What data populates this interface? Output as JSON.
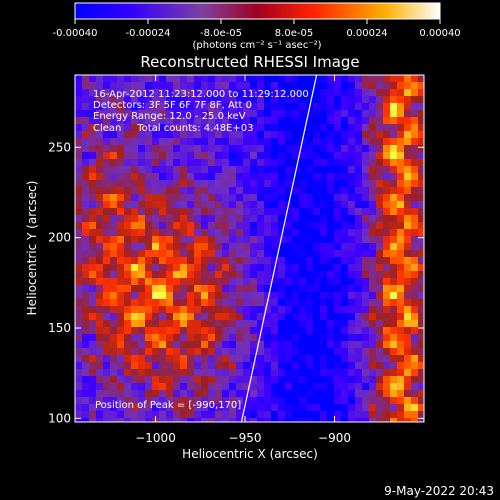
{
  "colorbar": {
    "ticks": [
      {
        "value": -0.0004,
        "label": "-0.00040"
      },
      {
        "value": -0.00024,
        "label": "-0.00024"
      },
      {
        "value": -8e-05,
        "label": "-8.0e-05"
      },
      {
        "value": 8e-05,
        "label": "8.0e-05"
      },
      {
        "value": 0.00024,
        "label": "0.00024"
      },
      {
        "value": 0.0004,
        "label": "0.00040"
      }
    ],
    "range": [
      -0.0004,
      0.0004
    ],
    "unit_label": "(photons cm⁻² s⁻¹ asec⁻²)"
  },
  "chart_data": {
    "type": "heatmap",
    "title": "Reconstructed RHESSI Image",
    "xlabel": "Heliocentric X (arcsec)",
    "ylabel": "Heliocentric Y (arcsec)",
    "xlim": [
      -1045,
      -850
    ],
    "ylim": [
      98,
      290
    ],
    "xticks": [
      {
        "value": -1000,
        "label": "−1000"
      },
      {
        "value": -950,
        "label": "−950"
      },
      {
        "value": -900,
        "label": "−900"
      }
    ],
    "yticks": [
      {
        "value": 100,
        "label": "100"
      },
      {
        "value": 150,
        "label": "150"
      },
      {
        "value": 200,
        "label": "200"
      },
      {
        "value": 250,
        "label": "250"
      }
    ],
    "limb_line": [
      [
        -952,
        98
      ],
      [
        -910,
        290
      ]
    ],
    "annotations": [
      "16-Apr-2012 11:23:12.000 to 11:29:12.000",
      "Detectors: 3F 5F 6F 7F 8F, Att 0",
      "Energy Range: 12.0 - 25.0 keV",
      "Clean     Total counts: 4.48E+03"
    ],
    "peak_label": "Position of Peak = [-990,170]",
    "peak": [
      -990,
      170
    ],
    "colormap": [
      "#0000ff",
      "#4000ff",
      "#7030c0",
      "#a02020",
      "#ff3000",
      "#ff9000",
      "#ffff40",
      "#ffffff"
    ]
  },
  "footer": {
    "date": "9-May-2022 20:43"
  }
}
